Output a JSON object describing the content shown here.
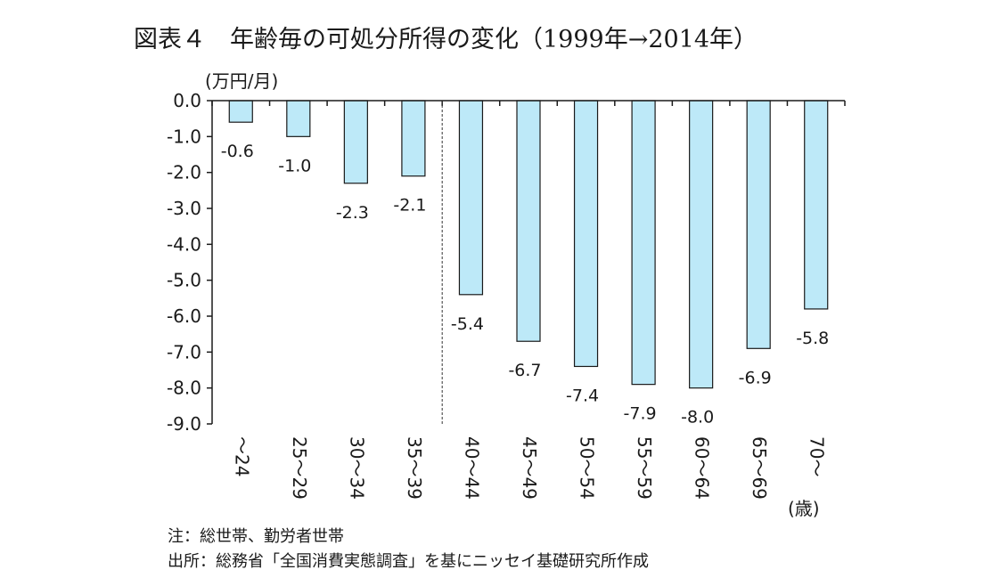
{
  "title": "図表４　年齢毎の可処分所得の変化（1999年→2014年）",
  "notes": {
    "note1": "注：総世帯、勤労者世帯",
    "note2": "出所：総務省「全国消費実態調査」を基にニッセイ基礎研究所作成"
  },
  "chart_data": {
    "type": "bar",
    "title": "図表４　年齢毎の可処分所得の変化（1999年→2014年）",
    "ylabel": "(万円/月)",
    "xlabel": "(歳)",
    "categories": [
      "～24",
      "25～29",
      "30～34",
      "35～39",
      "40～44",
      "45～49",
      "50～54",
      "55～59",
      "60～64",
      "65～69",
      "70～"
    ],
    "values": [
      -0.6,
      -1.0,
      -2.3,
      -2.1,
      -5.4,
      -6.7,
      -7.4,
      -7.9,
      -8.0,
      -6.9,
      -5.8
    ],
    "data_labels": [
      "-0.6",
      "-1.0",
      "-2.3",
      "-2.1",
      "-5.4",
      "-6.7",
      "-7.4",
      "-7.9",
      "-8.0",
      "-6.9",
      "-5.8"
    ],
    "yticks": [
      0,
      -1,
      -2,
      -3,
      -4,
      -5,
      -6,
      -7,
      -8,
      -9
    ],
    "ytick_labels": [
      "0.0",
      "-1.0",
      "-2.0",
      "-3.0",
      "-4.0",
      "-5.0",
      "-6.0",
      "-7.0",
      "-8.0",
      "-9.0"
    ],
    "ylim": [
      -9,
      0
    ],
    "grid": false,
    "legend": "none",
    "divider_after_category": "35～39",
    "bar_color": "#bde9f8",
    "bar_edge_color": "#1a1a1a"
  }
}
